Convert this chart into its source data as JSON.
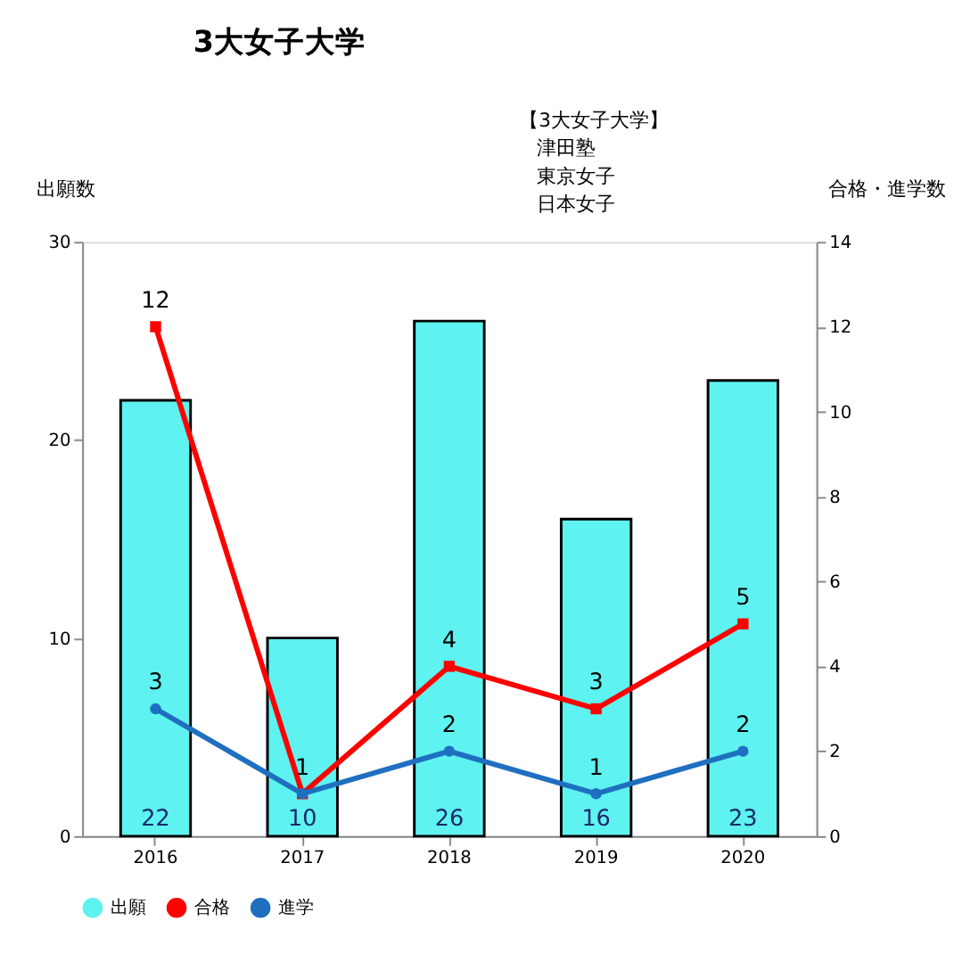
{
  "chart_data": {
    "type": "bar",
    "title": "3大女子大学",
    "ylabel": "出願数",
    "y2label": "合格・進学数",
    "annotations": [
      "【3大女子大学】",
      "津田塾",
      "東京女子",
      "日本女子"
    ],
    "categories": [
      "2016",
      "2017",
      "2018",
      "2019",
      "2020"
    ],
    "series": [
      {
        "name": "出願",
        "color": "#5ef2f0",
        "values": [
          22,
          10,
          26,
          16,
          23
        ]
      },
      {
        "name": "合格",
        "type": "line",
        "axis": "y2",
        "marker": "square",
        "color": "#ff0000",
        "values": [
          12,
          1,
          4,
          3,
          5
        ]
      },
      {
        "name": "進学",
        "type": "line",
        "axis": "y2",
        "marker": "circle",
        "color": "#1f6fc0",
        "values": [
          3,
          1,
          2,
          1,
          2
        ],
        "value_labels": [
          "3",
          null,
          "2",
          "1",
          "2"
        ]
      }
    ],
    "ylim": [
      0,
      30
    ],
    "yticks": [
      0,
      10,
      20,
      30
    ],
    "y2lim": [
      0,
      14
    ],
    "y2ticks": [
      0,
      2,
      4,
      6,
      8,
      10,
      12,
      14
    ],
    "data_labels": true,
    "grid": false,
    "legend": "bottom"
  }
}
